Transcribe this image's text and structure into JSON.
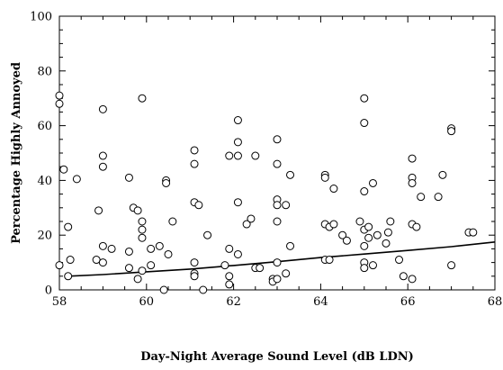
{
  "chart_data": {
    "type": "scatter",
    "title": "",
    "xlabel": "Day-Night Average Sound Level (dB LDN)",
    "ylabel": "Percentage Highly Annoyed",
    "xlim": [
      58,
      68
    ],
    "ylim": [
      0,
      100
    ],
    "x_ticks": [
      58,
      60,
      62,
      64,
      66,
      68
    ],
    "y_ticks": [
      0,
      20,
      40,
      60,
      80,
      100
    ],
    "x_tick_labels": [
      "58",
      "60",
      "62",
      "64",
      "66",
      "68"
    ],
    "y_tick_labels": [
      "0",
      "20",
      "40",
      "60",
      "80",
      "100"
    ],
    "grid": false,
    "series": [
      {
        "type": "scatter",
        "points": [
          [
            58.0,
            71
          ],
          [
            58.0,
            68
          ],
          [
            58.0,
            9
          ],
          [
            58.1,
            44
          ],
          [
            58.2,
            23
          ],
          [
            58.2,
            5
          ],
          [
            58.25,
            11
          ],
          [
            58.4,
            40.5
          ],
          [
            58.9,
            29
          ],
          [
            58.85,
            11
          ],
          [
            59.0,
            66
          ],
          [
            59.0,
            49
          ],
          [
            59.0,
            45
          ],
          [
            59.0,
            16
          ],
          [
            59.0,
            10
          ],
          [
            59.2,
            15
          ],
          [
            59.6,
            41
          ],
          [
            59.6,
            14
          ],
          [
            59.6,
            8
          ],
          [
            59.7,
            30
          ],
          [
            59.8,
            29
          ],
          [
            59.9,
            70
          ],
          [
            59.9,
            25
          ],
          [
            59.9,
            22
          ],
          [
            59.9,
            19
          ],
          [
            59.9,
            7
          ],
          [
            59.8,
            4
          ],
          [
            60.1,
            15
          ],
          [
            60.1,
            9
          ],
          [
            60.3,
            16
          ],
          [
            60.4,
            0
          ],
          [
            60.45,
            40
          ],
          [
            60.45,
            39
          ],
          [
            60.5,
            13
          ],
          [
            60.6,
            25
          ],
          [
            61.1,
            51
          ],
          [
            61.1,
            46
          ],
          [
            61.1,
            32
          ],
          [
            61.1,
            10
          ],
          [
            61.1,
            6
          ],
          [
            61.1,
            5
          ],
          [
            61.2,
            31
          ],
          [
            61.3,
            0
          ],
          [
            61.4,
            20
          ],
          [
            61.8,
            9
          ],
          [
            61.9,
            49
          ],
          [
            61.9,
            15
          ],
          [
            61.9,
            5
          ],
          [
            61.9,
            2
          ],
          [
            62.1,
            62
          ],
          [
            62.1,
            54
          ],
          [
            62.1,
            49
          ],
          [
            62.1,
            32
          ],
          [
            62.1,
            13
          ],
          [
            62.3,
            24
          ],
          [
            62.4,
            26
          ],
          [
            62.5,
            49
          ],
          [
            62.5,
            8
          ],
          [
            62.6,
            8
          ],
          [
            62.9,
            4
          ],
          [
            62.9,
            3
          ],
          [
            63.0,
            55
          ],
          [
            63.0,
            46
          ],
          [
            63.0,
            33
          ],
          [
            63.0,
            31
          ],
          [
            63.0,
            25
          ],
          [
            63.0,
            10
          ],
          [
            63.0,
            4
          ],
          [
            63.2,
            31
          ],
          [
            63.2,
            6
          ],
          [
            63.3,
            42
          ],
          [
            63.3,
            16
          ],
          [
            64.1,
            42
          ],
          [
            64.1,
            41
          ],
          [
            64.1,
            24
          ],
          [
            64.2,
            23
          ],
          [
            64.3,
            37
          ],
          [
            64.3,
            24
          ],
          [
            64.1,
            11
          ],
          [
            64.2,
            11
          ],
          [
            64.5,
            20
          ],
          [
            64.6,
            18
          ],
          [
            64.9,
            25
          ],
          [
            65.0,
            70
          ],
          [
            65.0,
            61
          ],
          [
            65.0,
            36
          ],
          [
            65.0,
            22
          ],
          [
            65.0,
            16
          ],
          [
            65.0,
            10
          ],
          [
            65.0,
            8
          ],
          [
            65.1,
            23
          ],
          [
            65.1,
            19
          ],
          [
            65.2,
            39
          ],
          [
            65.2,
            9
          ],
          [
            65.3,
            20
          ],
          [
            65.5,
            17
          ],
          [
            65.55,
            21
          ],
          [
            65.6,
            25
          ],
          [
            65.8,
            11
          ],
          [
            65.9,
            5
          ],
          [
            66.1,
            48
          ],
          [
            66.1,
            41
          ],
          [
            66.1,
            39
          ],
          [
            66.1,
            24
          ],
          [
            66.2,
            23
          ],
          [
            66.1,
            4
          ],
          [
            66.3,
            34
          ],
          [
            66.7,
            34
          ],
          [
            66.8,
            42
          ],
          [
            67.0,
            59
          ],
          [
            67.0,
            58
          ],
          [
            67.0,
            9
          ],
          [
            67.4,
            21
          ],
          [
            67.5,
            21
          ]
        ]
      },
      {
        "type": "line",
        "points": [
          [
            58.2,
            5.0
          ],
          [
            59,
            5.6
          ],
          [
            60,
            6.6
          ],
          [
            61,
            7.6
          ],
          [
            62,
            8.9
          ],
          [
            63,
            10.3
          ],
          [
            64,
            11.8
          ],
          [
            65,
            13.1
          ],
          [
            66,
            14.4
          ],
          [
            67,
            15.8
          ],
          [
            68,
            17.5
          ]
        ]
      }
    ]
  }
}
